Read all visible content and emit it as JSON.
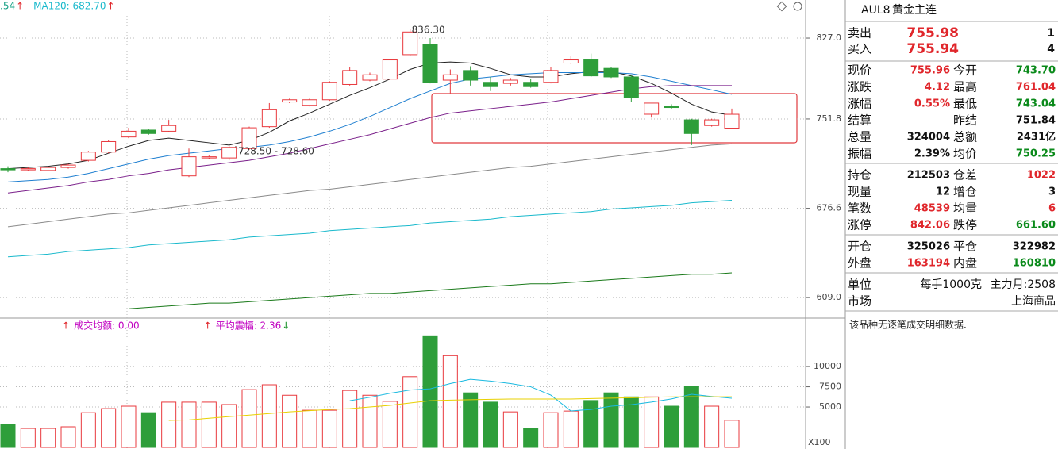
{
  "chart_data": [
    {
      "type": "candlestick",
      "log_scale": true,
      "ylim": [
        595,
        865
      ],
      "yticks": [
        {
          "value": 609,
          "label": "609.0"
        },
        676.6,
        751.8,
        {
          "value": 827,
          "label": "827.0"
        }
      ],
      "grid": true,
      "up_color": "#e8383d",
      "down_color": "#2e9e3a",
      "open": [
        709,
        708,
        707.5,
        710,
        716,
        723,
        736,
        742,
        741,
        703,
        718,
        718,
        726,
        745,
        767,
        764,
        769,
        783,
        787,
        788,
        811,
        821,
        787,
        796,
        785,
        784,
        785,
        785,
        803,
        806,
        798,
        790,
        756,
        763,
        751,
        746,
        743.7
      ],
      "high": [
        711,
        710,
        711,
        713,
        724,
        733,
        744,
        743,
        751,
        726,
        720,
        728.6,
        745,
        766,
        770,
        770,
        786,
        799,
        794,
        807,
        836.3,
        827,
        797,
        800,
        790,
        789,
        788,
        799,
        810,
        812,
        799,
        792,
        766,
        765,
        752,
        752,
        761.04
      ],
      "low": [
        706,
        707,
        707,
        709,
        715,
        722,
        735,
        738,
        740,
        702,
        717,
        716,
        725,
        744,
        766,
        763,
        768,
        782,
        786,
        787,
        810,
        784,
        775,
        782,
        777,
        782,
        780,
        784,
        802,
        790,
        789,
        767,
        753,
        761,
        729,
        745,
        743.04
      ],
      "close": [
        708,
        709,
        710,
        712,
        723,
        732,
        741,
        739,
        746,
        719,
        719,
        727,
        744,
        760,
        769,
        769,
        785,
        796,
        792,
        806,
        833,
        785,
        792,
        787,
        781,
        787,
        781,
        796,
        806,
        791,
        790,
        771,
        766,
        762,
        739,
        751,
        755.96
      ],
      "lines": [
        {
          "color": "#222222",
          "values": [
            709,
            710,
            711,
            713,
            716,
            722,
            728,
            733,
            735,
            733,
            731,
            729,
            733,
            740,
            750,
            757,
            765,
            773,
            780,
            788,
            797,
            803,
            804,
            803,
            798,
            792,
            790,
            790,
            793,
            795,
            795,
            791,
            784,
            775,
            765,
            758,
            755
          ]
        },
        {
          "color": "#1f7fd0",
          "values": [
            698,
            699,
            700,
            702,
            705,
            709,
            713,
            717,
            720,
            722,
            724,
            726,
            727,
            729,
            732,
            736,
            741,
            747,
            754,
            762,
            770,
            777,
            784,
            788,
            790,
            792,
            793,
            794,
            794,
            794,
            794,
            793,
            790,
            786,
            782,
            778,
            774
          ]
        },
        {
          "color": "#7a1f8a",
          "values": [
            689,
            691,
            693,
            695,
            698,
            700,
            703,
            705,
            708,
            710,
            712,
            714,
            716,
            719,
            722,
            726,
            730,
            734,
            738,
            743,
            748,
            753,
            757,
            759,
            761,
            763,
            765,
            767,
            770,
            773,
            776,
            779,
            781,
            782,
            782,
            782,
            782
          ]
        },
        {
          "color": "#8a8a8a",
          "values": [
            662,
            664,
            666,
            668,
            670,
            672,
            673,
            675,
            677,
            679,
            681,
            683,
            685,
            687,
            689,
            691,
            692,
            694,
            696,
            698,
            700,
            702,
            704,
            706,
            708,
            710,
            711,
            713,
            715,
            717,
            719,
            721,
            723,
            725,
            727,
            729,
            730
          ]
        },
        {
          "color": "#19b9cc",
          "values": [
            639,
            640,
            641,
            643,
            644,
            645,
            646,
            648,
            649,
            650,
            651,
            652,
            654,
            655,
            656,
            657,
            659,
            660,
            661,
            662,
            663,
            665,
            666,
            667,
            668,
            670,
            671,
            672,
            673,
            674,
            676,
            677,
            678,
            679,
            681,
            682,
            683
          ]
        },
        {
          "color": "#1a7a1a",
          "values": [
            null,
            null,
            null,
            null,
            null,
            null,
            601,
            602,
            603,
            604,
            605,
            605,
            606,
            607,
            608,
            609,
            610,
            611,
            612,
            612,
            613,
            614,
            615,
            616,
            617,
            618,
            619,
            619,
            620,
            621,
            622,
            623,
            624,
            625,
            626,
            626,
            627
          ]
        }
      ],
      "legend": [
        {
          "text": ".54",
          "arrow": "↑",
          "color": "#16a085"
        },
        {
          "text": "MA120: 682.70",
          "arrow": "↑",
          "color": "#19b9cc"
        }
      ],
      "annotations": [
        "836.30",
        "728.50 - 728.60"
      ]
    },
    {
      "type": "volume",
      "ylim": [
        0,
        15600
      ],
      "yticks": [
        5000,
        7500,
        10000
      ],
      "y_unit_label": "X100",
      "values": [
        2850,
        2350,
        2350,
        2550,
        4300,
        4800,
        5100,
        4300,
        5600,
        5600,
        5600,
        5300,
        7150,
        7750,
        6450,
        4600,
        4600,
        7050,
        6450,
        5700,
        8750,
        13800,
        11350,
        6750,
        5600,
        4400,
        2350,
        4300,
        4500,
        5800,
        6750,
        6250,
        6250,
        5100,
        7550,
        5100,
        3350
      ],
      "lines": [
        {
          "color": "#19b9e0",
          "values": [
            null,
            null,
            null,
            null,
            null,
            null,
            null,
            null,
            null,
            null,
            null,
            null,
            null,
            null,
            null,
            null,
            null,
            5780,
            6200,
            6700,
            7100,
            7250,
            7900,
            8430,
            8200,
            7900,
            7500,
            6470,
            4510,
            4700,
            5100,
            5290,
            5600,
            6000,
            6570,
            6300,
            6080
          ]
        },
        {
          "color": "#e8d000",
          "values": [
            null,
            null,
            null,
            null,
            null,
            null,
            null,
            null,
            3330,
            3400,
            3600,
            3820,
            4000,
            4200,
            4400,
            4550,
            4700,
            4800,
            5000,
            5200,
            5500,
            5780,
            5850,
            5900,
            5950,
            5980,
            5980,
            5980,
            5980,
            6050,
            6100,
            6150,
            6200,
            6250,
            6270,
            6270,
            6270
          ]
        }
      ],
      "legend": [
        {
          "prefix": "↑",
          "text": "成交均额: 0.00",
          "color": "#c000c0"
        },
        {
          "prefix": "↑",
          "text": "平均震幅: 2.36",
          "suffix": "↓",
          "color": "#c000c0"
        }
      ]
    }
  ],
  "quote_panel": {
    "symbol": "AUL8",
    "name": "黄金主连",
    "orders": [
      {
        "label": "卖出",
        "price": "755.98",
        "qty": "1"
      },
      {
        "label": "买入",
        "price": "755.94",
        "qty": "4"
      }
    ],
    "groups": [
      [
        [
          {
            "label": "现价",
            "value": "755.96",
            "color": "red"
          },
          {
            "label": "今开",
            "value": "743.70",
            "color": "green"
          }
        ],
        [
          {
            "label": "涨跌",
            "value": "4.12",
            "color": "red"
          },
          {
            "label": "最高",
            "value": "761.04",
            "color": "red"
          }
        ],
        [
          {
            "label": "涨幅",
            "value": "0.55%",
            "color": "red"
          },
          {
            "label": "最低",
            "value": "743.04",
            "color": "green"
          }
        ],
        [
          {
            "label": "结算"
          },
          {
            "label": "昨结",
            "value": "751.84",
            "color": "black"
          }
        ],
        [
          {
            "label": "总量",
            "value": "324004",
            "color": "black"
          },
          {
            "label": "总额",
            "value": "2431亿",
            "color": "black"
          }
        ],
        [
          {
            "label": "振幅",
            "value": "2.39%",
            "color": "black"
          },
          {
            "label": "均价",
            "value": "750.25",
            "color": "green"
          }
        ]
      ],
      [
        [
          {
            "label": "持仓",
            "value": "212503",
            "color": "black"
          },
          {
            "label": "仓差",
            "value": "1022",
            "color": "red"
          }
        ],
        [
          {
            "label": "现量",
            "value": "12",
            "color": "black"
          },
          {
            "label": "增仓",
            "value": "3",
            "color": "black"
          }
        ],
        [
          {
            "label": "笔数",
            "value": "48539",
            "color": "red"
          },
          {
            "label": "均量",
            "value": "6",
            "color": "red"
          }
        ],
        [
          {
            "label": "涨停",
            "value": "842.06",
            "color": "red"
          },
          {
            "label": "跌停",
            "value": "661.60",
            "color": "green"
          }
        ]
      ],
      [
        [
          {
            "label": "开仓",
            "value": "325026",
            "color": "black"
          },
          {
            "label": "平仓",
            "value": "322982",
            "color": "black"
          }
        ],
        [
          {
            "label": "外盘",
            "value": "163194",
            "color": "red"
          },
          {
            "label": "内盘",
            "value": "160810",
            "color": "green"
          }
        ]
      ]
    ],
    "info": [
      {
        "label": "单位",
        "values": [
          "每手1000克",
          "主力月:2508"
        ]
      },
      {
        "label": "市场",
        "values": [
          "上海商品"
        ]
      }
    ],
    "note": "该品种无逐笔成交明细数据."
  }
}
